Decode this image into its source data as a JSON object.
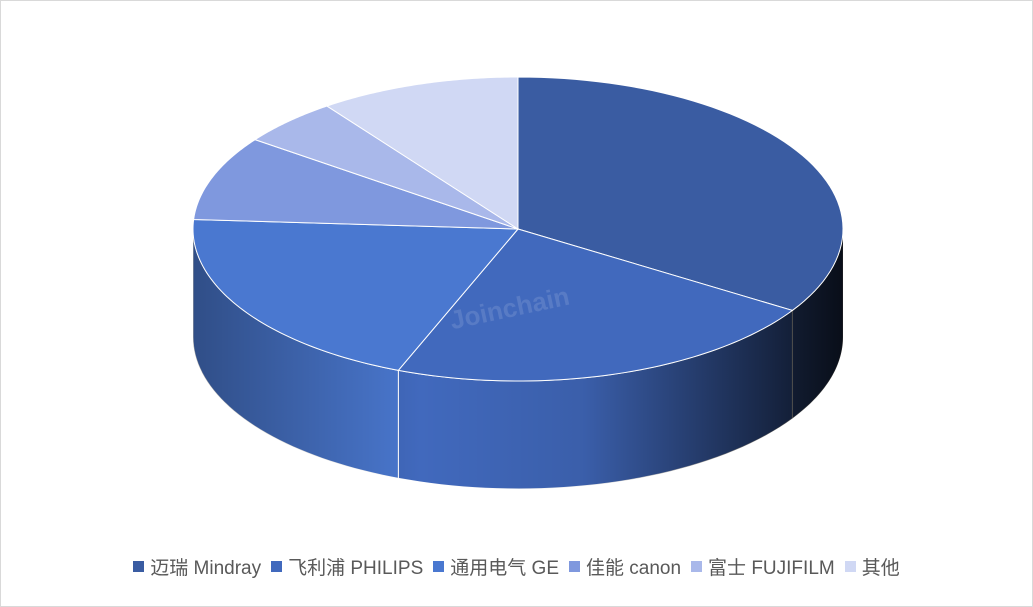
{
  "chart_data": {
    "type": "pie",
    "style": "3d",
    "categories": [
      "迈瑞 Mindray",
      "飞利浦 PHILIPS",
      "通用电气 GE",
      "佳能 canon",
      "富士 FUJIFILM",
      "其他"
    ],
    "values": [
      34,
      22,
      20,
      9,
      5,
      10
    ],
    "colors": [
      "#3A5CA2",
      "#4169BD",
      "#4A78D0",
      "#7F98DE",
      "#A9B8EA",
      "#D0D8F4"
    ],
    "legend_position": "bottom",
    "title": ""
  },
  "watermark": "Joinchain"
}
